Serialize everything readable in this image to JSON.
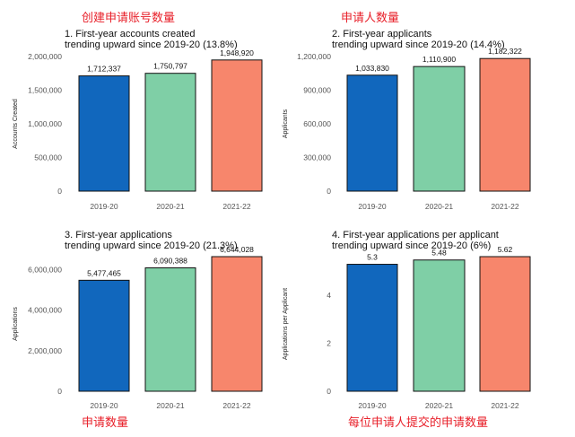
{
  "annotations": {
    "top_left": "创建申请账号数量",
    "top_right": "申请人数量",
    "bottom_left": "申请数量",
    "bottom_right": "每位申请人提交的申请数量"
  },
  "colors": {
    "2019-20": "#1167bd",
    "2020-21": "#7fcfa6",
    "2021-22": "#f7866c"
  },
  "chart_data": [
    {
      "type": "bar",
      "title": "1. First-year accounts created\ntrending upward since 2019-20 (13.8%)",
      "ylabel": "Accounts Created",
      "categories": [
        "2019-20",
        "2020-21",
        "2021-22"
      ],
      "values": [
        1712337,
        1750797,
        1948920
      ],
      "value_labels": [
        "1,712,337",
        "1,750,797",
        "1,948,920"
      ],
      "yticks": [
        0,
        500000,
        1000000,
        1500000,
        2000000
      ],
      "ytick_labels": [
        "0",
        "500,000",
        "1,000,000",
        "1,500,000",
        "2,000,000"
      ],
      "ylim": [
        0,
        2000000
      ]
    },
    {
      "type": "bar",
      "title": "2. First-year applicants\ntrending upward since 2019-20 (14.4%)",
      "ylabel": "Applicants",
      "categories": [
        "2019-20",
        "2020-21",
        "2021-22"
      ],
      "values": [
        1033830,
        1110900,
        1182322
      ],
      "value_labels": [
        "1,033,830",
        "1,110,900",
        "1,182,322"
      ],
      "yticks": [
        0,
        300000,
        600000,
        900000,
        1200000
      ],
      "ytick_labels": [
        "0",
        "300,000",
        "600,000",
        "900,000",
        "1,200,000"
      ],
      "ylim": [
        0,
        1200000
      ]
    },
    {
      "type": "bar",
      "title": "3. First-year applications\ntrending upward since 2019-20 (21.3%)",
      "ylabel": "Applications",
      "categories": [
        "2019-20",
        "2020-21",
        "2021-22"
      ],
      "values": [
        5477465,
        6090388,
        6644028
      ],
      "value_labels": [
        "5,477,465",
        "6,090,388",
        "6,644,028"
      ],
      "yticks": [
        0,
        2000000,
        4000000,
        6000000
      ],
      "ytick_labels": [
        "0",
        "2,000,000",
        "4,000,000",
        "6,000,000"
      ],
      "ylim": [
        0,
        6644028
      ]
    },
    {
      "type": "bar",
      "title": "4. First-year applications per applicant\ntrending upward since 2019-20 (6%)",
      "ylabel": "Applications per Applicant",
      "categories": [
        "2019-20",
        "2020-21",
        "2021-22"
      ],
      "values": [
        5.3,
        5.48,
        5.62
      ],
      "value_labels": [
        "5.3",
        "5.48",
        "5.62"
      ],
      "yticks": [
        0,
        2,
        4
      ],
      "ytick_labels": [
        "0",
        "2",
        "4"
      ],
      "ylim": [
        0,
        5.62
      ]
    }
  ]
}
